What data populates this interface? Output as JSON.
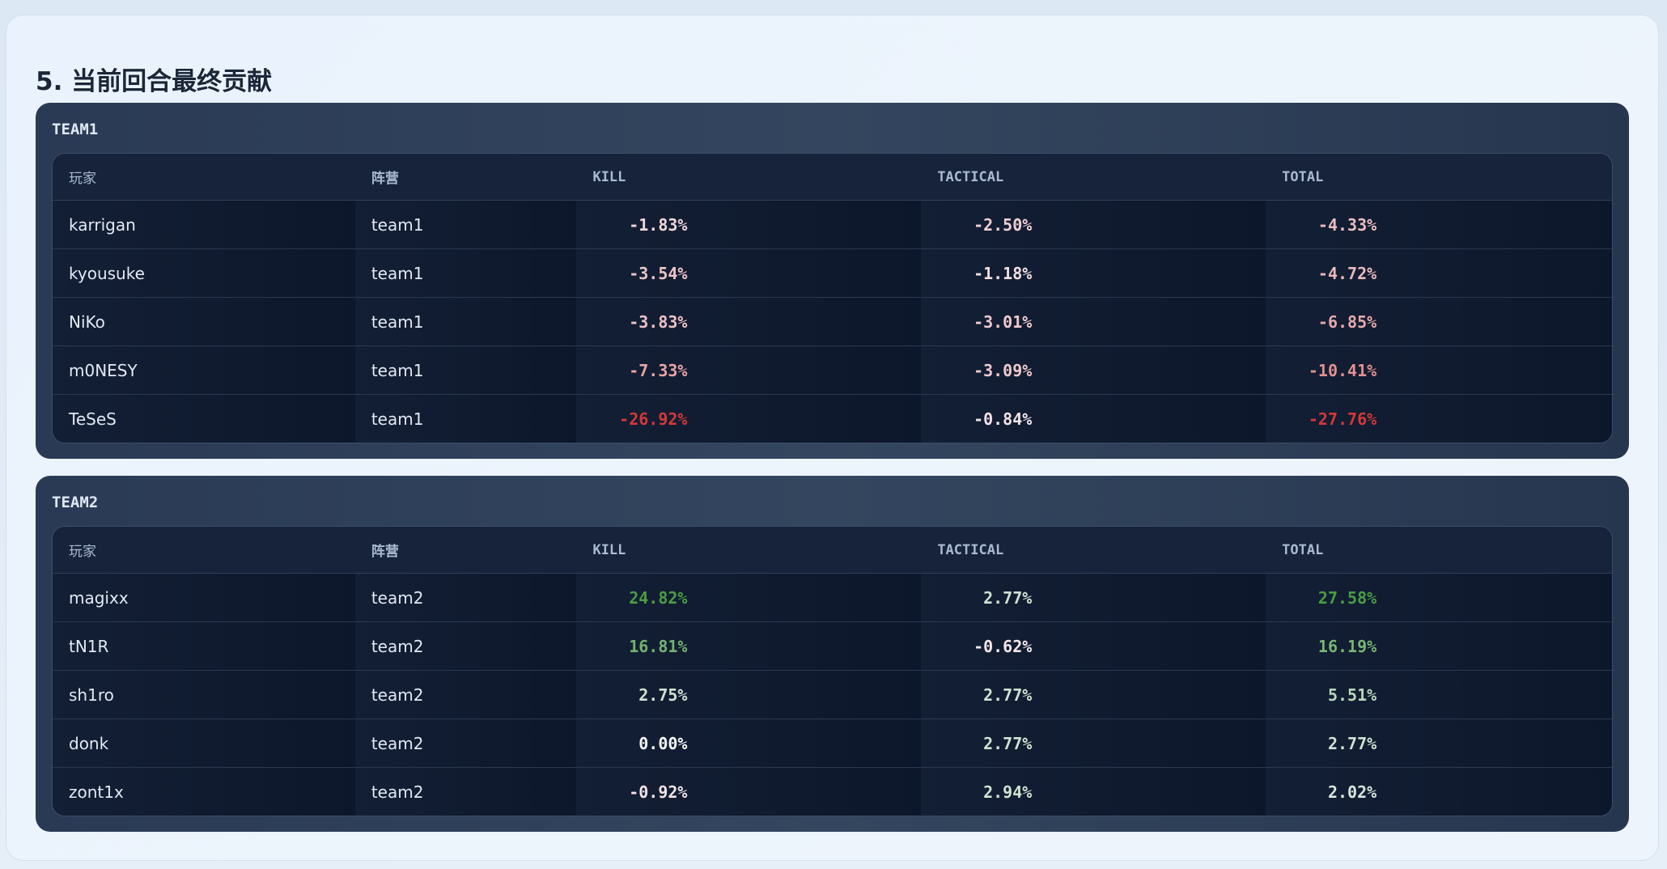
{
  "title": "5. 当前回合最终贡献",
  "teams": [
    {
      "name": "TEAM1",
      "columns": [
        "玩家",
        "阵营",
        "KILL",
        "TACTICAL",
        "TOTAL"
      ],
      "rows": [
        [
          "karrigan",
          "team1",
          "-1.83%",
          "-2.50%",
          "-4.33%"
        ],
        [
          "kyousuke",
          "team1",
          "-3.54%",
          "-1.18%",
          "-4.72%"
        ],
        [
          "NiKo",
          "team1",
          "-3.83%",
          "-3.01%",
          "-6.85%"
        ],
        [
          "m0NESY",
          "team1",
          "-7.33%",
          "-3.09%",
          "-10.41%"
        ],
        [
          "TeSeS",
          "team1",
          "-26.92%",
          "-0.84%",
          "-27.76%"
        ]
      ]
    },
    {
      "name": "TEAM2",
      "columns": [
        "玩家",
        "阵营",
        "KILL",
        "TACTICAL",
        "TOTAL"
      ],
      "rows": [
        [
          "magixx",
          "team2",
          "24.82%",
          "2.77%",
          "27.58%"
        ],
        [
          "tN1R",
          "team2",
          "16.81%",
          "-0.62%",
          "16.19%"
        ],
        [
          "sh1ro",
          "team2",
          "2.75%",
          "2.77%",
          "5.51%"
        ],
        [
          "donk",
          "team2",
          "0.00%",
          "2.77%",
          "2.77%"
        ],
        [
          "zont1x",
          "team2",
          "-0.92%",
          "2.94%",
          "2.02%"
        ]
      ]
    }
  ]
}
